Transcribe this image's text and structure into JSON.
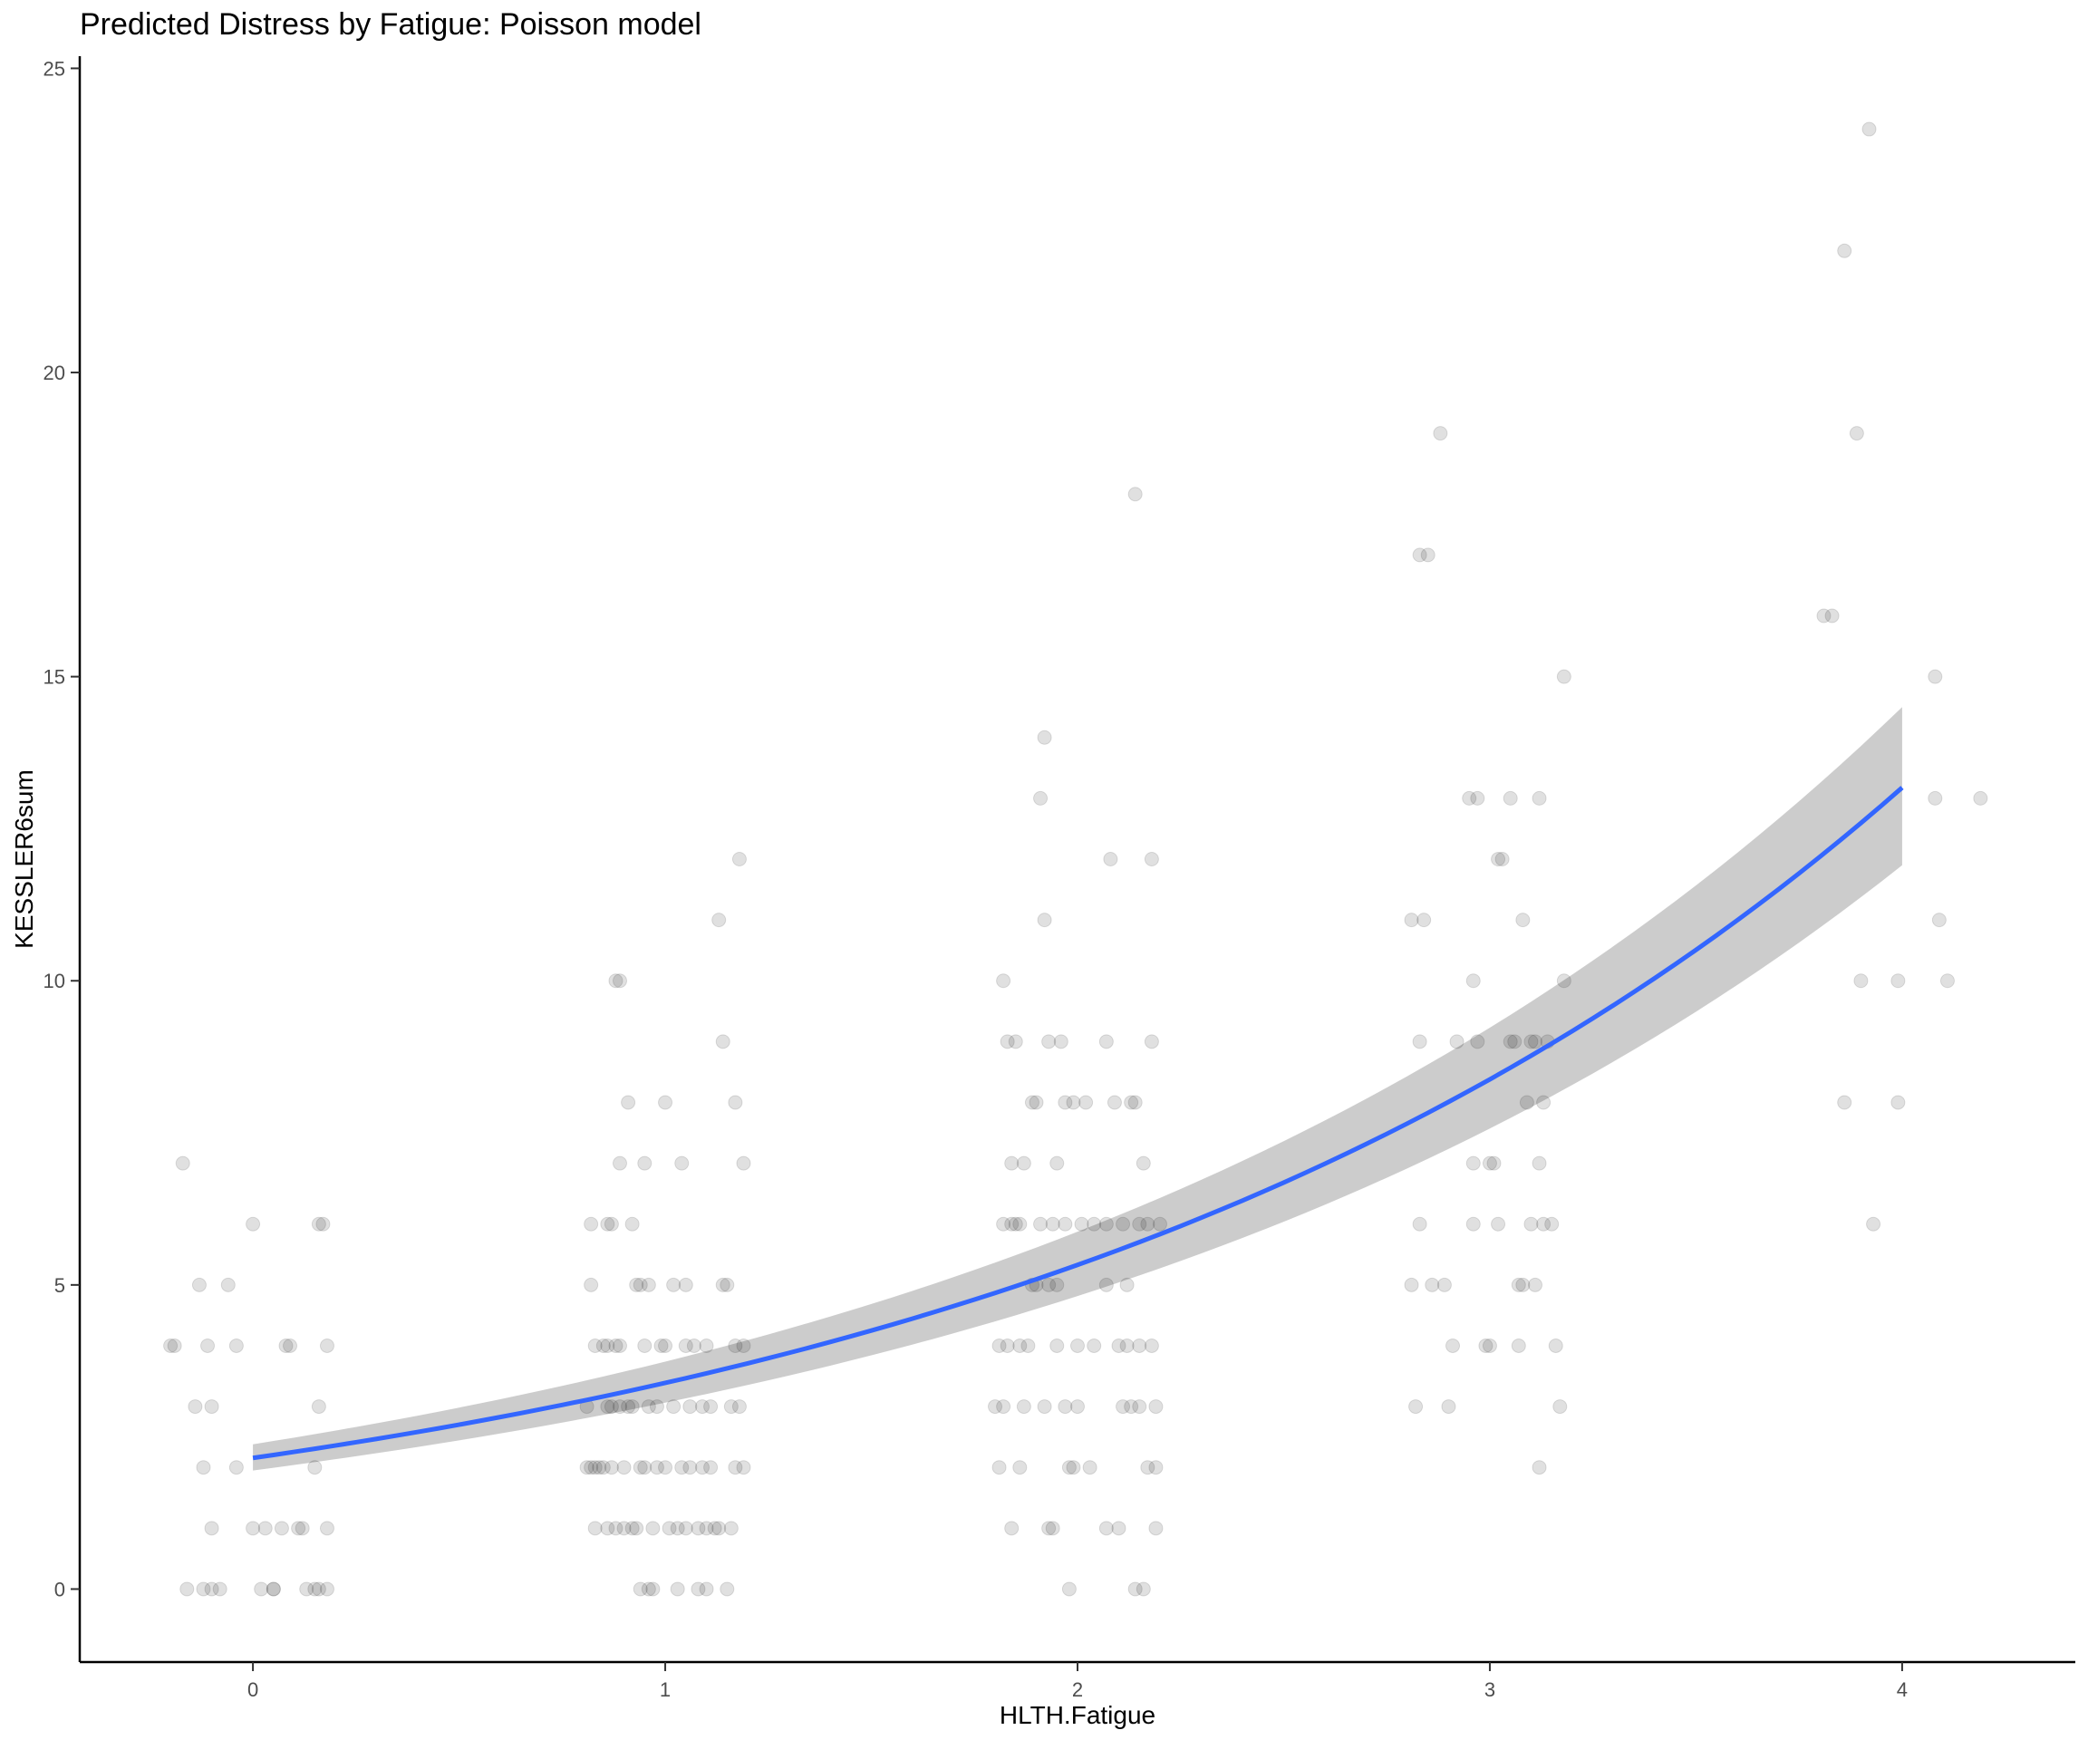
{
  "chart_data": {
    "type": "scatter",
    "title": "Predicted Distress by Fatigue: Poisson model",
    "xlabel": "HLTH.Fatigue",
    "ylabel": "KESSLER6sum",
    "xlim": [
      -0.42,
      4.42
    ],
    "ylim": [
      -1.2,
      25.2
    ],
    "x_ticks": [
      0,
      1,
      2,
      3,
      4
    ],
    "y_ticks": [
      0,
      5,
      10,
      15,
      20,
      25
    ],
    "x_tick_labels": [
      "0",
      "1",
      "2",
      "3",
      "4"
    ],
    "y_tick_labels": [
      "0",
      "5",
      "10",
      "15",
      "20",
      "25"
    ],
    "grid": false,
    "legend": "none",
    "colors": {
      "points": "#000000",
      "fit_line": "#3366ff",
      "ribbon": "#999999"
    },
    "fit": {
      "model": "poisson",
      "x_range": [
        0,
        4
      ],
      "intercept": 0.768,
      "slope": 0.4526,
      "ci_at_x0": [
        1.95,
        2.38
      ],
      "ci_at_x4": [
        11.9,
        14.5
      ]
    },
    "points": [
      {
        "x": -0.2,
        "y": 4
      },
      {
        "x": -0.19,
        "y": 4
      },
      {
        "x": -0.17,
        "y": 7
      },
      {
        "x": -0.16,
        "y": 0
      },
      {
        "x": -0.14,
        "y": 3
      },
      {
        "x": -0.13,
        "y": 5
      },
      {
        "x": -0.12,
        "y": 2
      },
      {
        "x": -0.12,
        "y": 0
      },
      {
        "x": -0.11,
        "y": 4
      },
      {
        "x": -0.1,
        "y": 0
      },
      {
        "x": -0.1,
        "y": 1
      },
      {
        "x": -0.1,
        "y": 3
      },
      {
        "x": -0.08,
        "y": 0
      },
      {
        "x": -0.06,
        "y": 5
      },
      {
        "x": -0.04,
        "y": 4
      },
      {
        "x": -0.04,
        "y": 2
      },
      {
        "x": 0.0,
        "y": 1
      },
      {
        "x": 0.0,
        "y": 6
      },
      {
        "x": 0.02,
        "y": 0
      },
      {
        "x": 0.03,
        "y": 1
      },
      {
        "x": 0.05,
        "y": 0
      },
      {
        "x": 0.05,
        "y": 0
      },
      {
        "x": 0.07,
        "y": 1
      },
      {
        "x": 0.08,
        "y": 4
      },
      {
        "x": 0.09,
        "y": 4
      },
      {
        "x": 0.11,
        "y": 1
      },
      {
        "x": 0.12,
        "y": 1
      },
      {
        "x": 0.13,
        "y": 0
      },
      {
        "x": 0.15,
        "y": 2
      },
      {
        "x": 0.15,
        "y": 0
      },
      {
        "x": 0.16,
        "y": 0
      },
      {
        "x": 0.16,
        "y": 3
      },
      {
        "x": 0.16,
        "y": 6
      },
      {
        "x": 0.17,
        "y": 6
      },
      {
        "x": 0.18,
        "y": 4
      },
      {
        "x": 0.18,
        "y": 0
      },
      {
        "x": 0.18,
        "y": 1
      },
      {
        "x": 0.81,
        "y": 2
      },
      {
        "x": 0.81,
        "y": 3
      },
      {
        "x": 0.82,
        "y": 5
      },
      {
        "x": 0.82,
        "y": 2
      },
      {
        "x": 0.82,
        "y": 6
      },
      {
        "x": 0.83,
        "y": 1
      },
      {
        "x": 0.83,
        "y": 2
      },
      {
        "x": 0.83,
        "y": 4
      },
      {
        "x": 0.84,
        "y": 2
      },
      {
        "x": 0.85,
        "y": 4
      },
      {
        "x": 0.85,
        "y": 2
      },
      {
        "x": 0.86,
        "y": 6
      },
      {
        "x": 0.86,
        "y": 3
      },
      {
        "x": 0.86,
        "y": 4
      },
      {
        "x": 0.86,
        "y": 1
      },
      {
        "x": 0.87,
        "y": 6
      },
      {
        "x": 0.87,
        "y": 2
      },
      {
        "x": 0.87,
        "y": 3
      },
      {
        "x": 0.88,
        "y": 10
      },
      {
        "x": 0.88,
        "y": 4
      },
      {
        "x": 0.88,
        "y": 1
      },
      {
        "x": 0.89,
        "y": 10
      },
      {
        "x": 0.89,
        "y": 7
      },
      {
        "x": 0.89,
        "y": 3
      },
      {
        "x": 0.89,
        "y": 4
      },
      {
        "x": 0.9,
        "y": 1
      },
      {
        "x": 0.9,
        "y": 2
      },
      {
        "x": 0.91,
        "y": 8
      },
      {
        "x": 0.91,
        "y": 3
      },
      {
        "x": 0.92,
        "y": 6
      },
      {
        "x": 0.92,
        "y": 1
      },
      {
        "x": 0.92,
        "y": 3
      },
      {
        "x": 0.93,
        "y": 5
      },
      {
        "x": 0.93,
        "y": 1
      },
      {
        "x": 0.94,
        "y": 2
      },
      {
        "x": 0.94,
        "y": 5
      },
      {
        "x": 0.94,
        "y": 0
      },
      {
        "x": 0.95,
        "y": 7
      },
      {
        "x": 0.95,
        "y": 4
      },
      {
        "x": 0.95,
        "y": 2
      },
      {
        "x": 0.96,
        "y": 0
      },
      {
        "x": 0.96,
        "y": 3
      },
      {
        "x": 0.96,
        "y": 5
      },
      {
        "x": 0.97,
        "y": 1
      },
      {
        "x": 0.97,
        "y": 0
      },
      {
        "x": 0.98,
        "y": 2
      },
      {
        "x": 0.98,
        "y": 3
      },
      {
        "x": 0.99,
        "y": 4
      },
      {
        "x": 1.0,
        "y": 8
      },
      {
        "x": 1.0,
        "y": 2
      },
      {
        "x": 1.0,
        "y": 4
      },
      {
        "x": 1.01,
        "y": 1
      },
      {
        "x": 1.02,
        "y": 3
      },
      {
        "x": 1.02,
        "y": 5
      },
      {
        "x": 1.03,
        "y": 1
      },
      {
        "x": 1.03,
        "y": 0
      },
      {
        "x": 1.04,
        "y": 7
      },
      {
        "x": 1.04,
        "y": 2
      },
      {
        "x": 1.05,
        "y": 4
      },
      {
        "x": 1.05,
        "y": 1
      },
      {
        "x": 1.05,
        "y": 5
      },
      {
        "x": 1.06,
        "y": 3
      },
      {
        "x": 1.06,
        "y": 2
      },
      {
        "x": 1.07,
        "y": 4
      },
      {
        "x": 1.08,
        "y": 1
      },
      {
        "x": 1.08,
        "y": 0
      },
      {
        "x": 1.09,
        "y": 3
      },
      {
        "x": 1.09,
        "y": 2
      },
      {
        "x": 1.1,
        "y": 1
      },
      {
        "x": 1.1,
        "y": 0
      },
      {
        "x": 1.1,
        "y": 4
      },
      {
        "x": 1.11,
        "y": 2
      },
      {
        "x": 1.11,
        "y": 3
      },
      {
        "x": 1.12,
        "y": 1
      },
      {
        "x": 1.13,
        "y": 11
      },
      {
        "x": 1.13,
        "y": 1
      },
      {
        "x": 1.14,
        "y": 9
      },
      {
        "x": 1.14,
        "y": 5
      },
      {
        "x": 1.15,
        "y": 5
      },
      {
        "x": 1.15,
        "y": 0
      },
      {
        "x": 1.16,
        "y": 1
      },
      {
        "x": 1.16,
        "y": 3
      },
      {
        "x": 1.17,
        "y": 8
      },
      {
        "x": 1.17,
        "y": 2
      },
      {
        "x": 1.17,
        "y": 4
      },
      {
        "x": 1.18,
        "y": 12
      },
      {
        "x": 1.18,
        "y": 3
      },
      {
        "x": 1.19,
        "y": 7
      },
      {
        "x": 1.19,
        "y": 2
      },
      {
        "x": 1.19,
        "y": 4
      },
      {
        "x": 1.8,
        "y": 3
      },
      {
        "x": 1.81,
        "y": 4
      },
      {
        "x": 1.81,
        "y": 2
      },
      {
        "x": 1.82,
        "y": 10
      },
      {
        "x": 1.82,
        "y": 6
      },
      {
        "x": 1.82,
        "y": 3
      },
      {
        "x": 1.83,
        "y": 4
      },
      {
        "x": 1.83,
        "y": 9
      },
      {
        "x": 1.84,
        "y": 7
      },
      {
        "x": 1.84,
        "y": 6
      },
      {
        "x": 1.84,
        "y": 1
      },
      {
        "x": 1.85,
        "y": 6
      },
      {
        "x": 1.85,
        "y": 9
      },
      {
        "x": 1.86,
        "y": 4
      },
      {
        "x": 1.86,
        "y": 2
      },
      {
        "x": 1.86,
        "y": 6
      },
      {
        "x": 1.87,
        "y": 7
      },
      {
        "x": 1.87,
        "y": 3
      },
      {
        "x": 1.88,
        "y": 4
      },
      {
        "x": 1.89,
        "y": 8
      },
      {
        "x": 1.89,
        "y": 5
      },
      {
        "x": 1.9,
        "y": 5
      },
      {
        "x": 1.9,
        "y": 8
      },
      {
        "x": 1.91,
        "y": 6
      },
      {
        "x": 1.91,
        "y": 13
      },
      {
        "x": 1.92,
        "y": 11
      },
      {
        "x": 1.92,
        "y": 14
      },
      {
        "x": 1.92,
        "y": 3
      },
      {
        "x": 1.93,
        "y": 1
      },
      {
        "x": 1.93,
        "y": 9
      },
      {
        "x": 1.93,
        "y": 5
      },
      {
        "x": 1.94,
        "y": 1
      },
      {
        "x": 1.94,
        "y": 6
      },
      {
        "x": 1.95,
        "y": 5
      },
      {
        "x": 1.95,
        "y": 4
      },
      {
        "x": 1.95,
        "y": 7
      },
      {
        "x": 1.96,
        "y": 9
      },
      {
        "x": 1.97,
        "y": 8
      },
      {
        "x": 1.97,
        "y": 3
      },
      {
        "x": 1.97,
        "y": 6
      },
      {
        "x": 1.98,
        "y": 2
      },
      {
        "x": 1.98,
        "y": 0
      },
      {
        "x": 1.99,
        "y": 8
      },
      {
        "x": 1.99,
        "y": 2
      },
      {
        "x": 2.0,
        "y": 3
      },
      {
        "x": 2.0,
        "y": 4
      },
      {
        "x": 2.01,
        "y": 6
      },
      {
        "x": 2.02,
        "y": 8
      },
      {
        "x": 2.03,
        "y": 2
      },
      {
        "x": 2.04,
        "y": 4
      },
      {
        "x": 2.04,
        "y": 6
      },
      {
        "x": 2.07,
        "y": 1
      },
      {
        "x": 2.07,
        "y": 9
      },
      {
        "x": 2.07,
        "y": 5
      },
      {
        "x": 2.07,
        "y": 6
      },
      {
        "x": 2.08,
        "y": 12
      },
      {
        "x": 2.09,
        "y": 8
      },
      {
        "x": 2.1,
        "y": 4
      },
      {
        "x": 2.1,
        "y": 1
      },
      {
        "x": 2.11,
        "y": 6
      },
      {
        "x": 2.11,
        "y": 3
      },
      {
        "x": 2.12,
        "y": 5
      },
      {
        "x": 2.12,
        "y": 4
      },
      {
        "x": 2.13,
        "y": 8
      },
      {
        "x": 2.13,
        "y": 3
      },
      {
        "x": 2.14,
        "y": 18
      },
      {
        "x": 2.14,
        "y": 8
      },
      {
        "x": 2.14,
        "y": 0
      },
      {
        "x": 2.15,
        "y": 6
      },
      {
        "x": 2.15,
        "y": 3
      },
      {
        "x": 2.15,
        "y": 4
      },
      {
        "x": 2.16,
        "y": 7
      },
      {
        "x": 2.16,
        "y": 0
      },
      {
        "x": 2.17,
        "y": 2
      },
      {
        "x": 2.17,
        "y": 6
      },
      {
        "x": 2.18,
        "y": 4
      },
      {
        "x": 2.18,
        "y": 9
      },
      {
        "x": 2.18,
        "y": 12
      },
      {
        "x": 2.19,
        "y": 1
      },
      {
        "x": 2.19,
        "y": 3
      },
      {
        "x": 2.19,
        "y": 2
      },
      {
        "x": 2.2,
        "y": 6
      },
      {
        "x": 2.81,
        "y": 11
      },
      {
        "x": 2.81,
        "y": 5
      },
      {
        "x": 2.82,
        "y": 3
      },
      {
        "x": 2.83,
        "y": 17
      },
      {
        "x": 2.83,
        "y": 9
      },
      {
        "x": 2.83,
        "y": 6
      },
      {
        "x": 2.84,
        "y": 11
      },
      {
        "x": 2.85,
        "y": 17
      },
      {
        "x": 2.86,
        "y": 5
      },
      {
        "x": 2.88,
        "y": 19
      },
      {
        "x": 2.89,
        "y": 5
      },
      {
        "x": 2.9,
        "y": 3
      },
      {
        "x": 2.91,
        "y": 4
      },
      {
        "x": 2.92,
        "y": 9
      },
      {
        "x": 2.95,
        "y": 13
      },
      {
        "x": 2.96,
        "y": 10
      },
      {
        "x": 2.96,
        "y": 7
      },
      {
        "x": 2.96,
        "y": 6
      },
      {
        "x": 2.97,
        "y": 13
      },
      {
        "x": 2.97,
        "y": 9
      },
      {
        "x": 2.99,
        "y": 4
      },
      {
        "x": 3.0,
        "y": 4
      },
      {
        "x": 3.0,
        "y": 7
      },
      {
        "x": 3.01,
        "y": 7
      },
      {
        "x": 3.02,
        "y": 12
      },
      {
        "x": 3.02,
        "y": 6
      },
      {
        "x": 3.03,
        "y": 12
      },
      {
        "x": 3.05,
        "y": 13
      },
      {
        "x": 3.05,
        "y": 9
      },
      {
        "x": 3.06,
        "y": 9
      },
      {
        "x": 3.07,
        "y": 5
      },
      {
        "x": 3.07,
        "y": 4
      },
      {
        "x": 3.08,
        "y": 11
      },
      {
        "x": 3.08,
        "y": 5
      },
      {
        "x": 3.09,
        "y": 8
      },
      {
        "x": 3.1,
        "y": 6
      },
      {
        "x": 3.1,
        "y": 9
      },
      {
        "x": 3.11,
        "y": 5
      },
      {
        "x": 3.11,
        "y": 9
      },
      {
        "x": 3.12,
        "y": 13
      },
      {
        "x": 3.12,
        "y": 7
      },
      {
        "x": 3.12,
        "y": 2
      },
      {
        "x": 3.13,
        "y": 8
      },
      {
        "x": 3.13,
        "y": 6
      },
      {
        "x": 3.14,
        "y": 9
      },
      {
        "x": 3.15,
        "y": 6
      },
      {
        "x": 3.16,
        "y": 4
      },
      {
        "x": 3.17,
        "y": 3
      },
      {
        "x": 3.18,
        "y": 15
      },
      {
        "x": 3.18,
        "y": 10
      },
      {
        "x": 3.81,
        "y": 16
      },
      {
        "x": 3.83,
        "y": 16
      },
      {
        "x": 3.86,
        "y": 22
      },
      {
        "x": 3.86,
        "y": 8
      },
      {
        "x": 3.89,
        "y": 19
      },
      {
        "x": 3.9,
        "y": 10
      },
      {
        "x": 3.92,
        "y": 24
      },
      {
        "x": 3.93,
        "y": 6
      },
      {
        "x": 3.99,
        "y": 10
      },
      {
        "x": 3.99,
        "y": 8
      },
      {
        "x": 4.08,
        "y": 13
      },
      {
        "x": 4.08,
        "y": 15
      },
      {
        "x": 4.09,
        "y": 11
      },
      {
        "x": 4.11,
        "y": 10
      },
      {
        "x": 4.19,
        "y": 13
      }
    ]
  }
}
